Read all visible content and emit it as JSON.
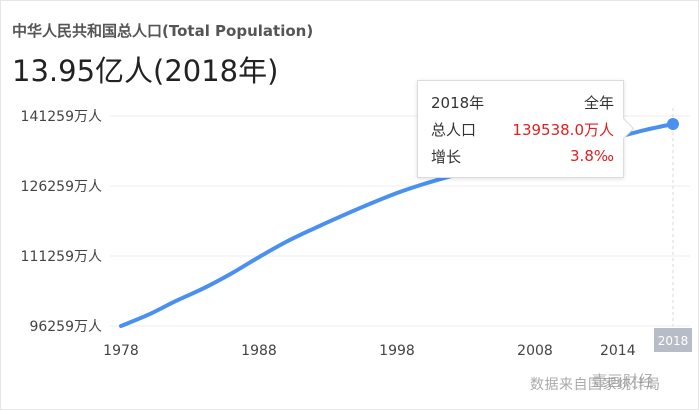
{
  "header": {
    "title": "中华人民共和国总人口(Total Population)",
    "headline": "13.95亿人(2018年)"
  },
  "tooltip": {
    "year": "2018年",
    "period": "全年",
    "total_label": "总人口",
    "total_value": "139538.0万人",
    "growth_label": "增长",
    "growth_value": "3.8‰"
  },
  "watermark": {
    "text": "数据来自国家统计局",
    "overlay_text": "壹画财经"
  },
  "colors": {
    "line": "#4a90f0",
    "value": "#e02020",
    "grid": "#ececec",
    "highlight_bg": "#b8bcc6"
  },
  "chart_data": {
    "type": "line",
    "title": "中华人民共和国总人口(Total Population)",
    "xlabel": "",
    "ylabel": "",
    "unit": "万人",
    "x": [
      1978,
      1980,
      1982,
      1984,
      1986,
      1988,
      1990,
      1992,
      1994,
      1996,
      1998,
      2000,
      2002,
      2004,
      2006,
      2008,
      2010,
      2012,
      2014,
      2016,
      2018
    ],
    "series": [
      {
        "values": [
          96259,
          98705,
          101654,
          104357,
          107507,
          111026,
          114333,
          117171,
          119850,
          122389,
          124761,
          126743,
          128453,
          129988,
          131448,
          132802,
          134091,
          135404,
          136782,
          138271,
          139538
        ]
      }
    ],
    "yticks": [
      96259,
      111259,
      126259,
      141259
    ],
    "ytick_labels": [
      "96259万人",
      "111259万人",
      "126259万人",
      "141259万人"
    ],
    "xticks": [
      1978,
      1988,
      1998,
      2008,
      2014
    ],
    "xtick_labels": [
      "1978",
      "1988",
      "1998",
      "2008",
      "2014"
    ],
    "highlight_x": 2018,
    "highlight_label": "2018",
    "ylim": [
      96259,
      141259
    ],
    "xlim": [
      1978,
      2018
    ],
    "grid": true,
    "legend": "none"
  }
}
